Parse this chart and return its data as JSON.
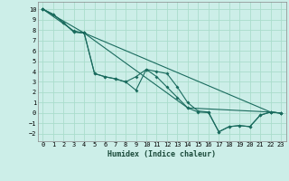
{
  "xlabel": "Humidex (Indice chaleur)",
  "background_color": "#cceee8",
  "grid_color": "#aaddcc",
  "line_color": "#1a6b5e",
  "xlim": [
    -0.5,
    23.5
  ],
  "ylim": [
    -2.7,
    10.7
  ],
  "xticks": [
    0,
    1,
    2,
    3,
    4,
    5,
    6,
    7,
    8,
    9,
    10,
    11,
    12,
    13,
    14,
    15,
    16,
    17,
    18,
    19,
    20,
    21,
    22,
    23
  ],
  "yticks": [
    -2,
    -1,
    0,
    1,
    2,
    3,
    4,
    5,
    6,
    7,
    8,
    9,
    10
  ],
  "series1_x": [
    0,
    1,
    2,
    3,
    4,
    5,
    6,
    7,
    8,
    9,
    10,
    11,
    12,
    13,
    14,
    15,
    16,
    17,
    18,
    19,
    20,
    21,
    22,
    23
  ],
  "series1_y": [
    10.0,
    9.5,
    8.7,
    7.8,
    7.7,
    3.8,
    3.5,
    3.3,
    3.0,
    2.2,
    4.2,
    4.0,
    3.8,
    2.5,
    1.0,
    0.2,
    0.1,
    -1.8,
    -1.3,
    -1.2,
    -1.3,
    -0.2,
    0.1,
    0.0
  ],
  "series2_x": [
    0,
    1,
    2,
    3,
    4,
    5,
    6,
    7,
    8,
    9,
    10,
    11,
    12,
    13,
    14,
    15,
    16,
    17,
    18,
    19,
    20,
    21,
    22,
    23
  ],
  "series2_y": [
    10.0,
    9.5,
    8.7,
    7.8,
    7.7,
    3.8,
    3.5,
    3.3,
    3.0,
    3.5,
    4.2,
    3.5,
    2.5,
    1.5,
    0.5,
    0.1,
    0.05,
    -1.8,
    -1.3,
    -1.2,
    -1.3,
    -0.2,
    0.1,
    0.0
  ],
  "series3_x": [
    0,
    3,
    4,
    22,
    23
  ],
  "series3_y": [
    10.0,
    7.9,
    7.7,
    0.1,
    0.0
  ],
  "series4_x": [
    0,
    4,
    14,
    22,
    23
  ],
  "series4_y": [
    10.0,
    7.7,
    0.5,
    0.1,
    0.0
  ]
}
